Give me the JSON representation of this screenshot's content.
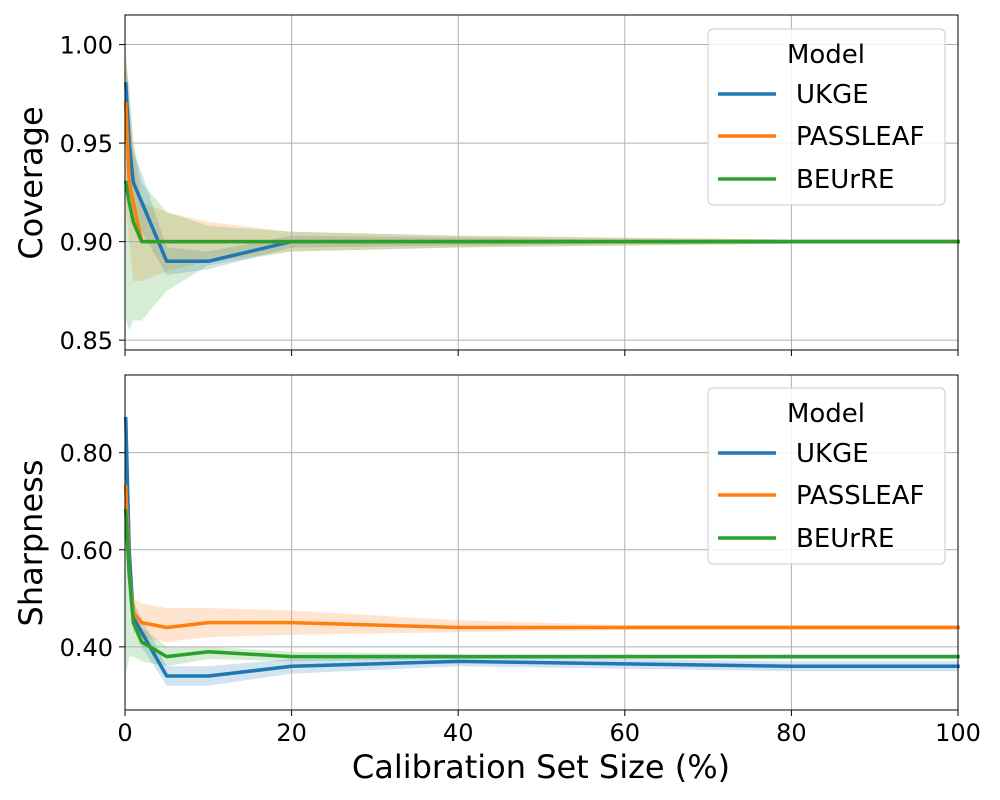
{
  "chart_data": {
    "xlabel": "Calibration Set Size (%)",
    "xlim": [
      0,
      100
    ],
    "xticks": [
      0,
      20,
      40,
      60,
      80,
      100
    ],
    "colors": {
      "UKGE": "#1f77b4",
      "PASSLEAF": "#ff7f0e",
      "BEUrRE": "#2ca02c"
    },
    "panels": [
      {
        "type": "line",
        "id": "coverage",
        "ylabel": "Coverage",
        "ylim": [
          0.845,
          1.015
        ],
        "yticks": [
          "1.00",
          "0.95",
          "0.90",
          "0.85"
        ],
        "legend": {
          "title": "Model",
          "placement": "top-right"
        },
        "series": [
          {
            "name": "UKGE",
            "x": [
              0.1,
              0.5,
              1,
              2,
              5,
              10,
              20,
              40,
              60,
              80,
              100
            ],
            "y": [
              0.98,
              0.95,
              0.93,
              0.92,
              0.89,
              0.89,
              0.9,
              0.9,
              0.9,
              0.9,
              0.9
            ],
            "lower": [
              0.96,
              0.93,
              0.91,
              0.905,
              0.883,
              0.886,
              0.897,
              0.898,
              0.899,
              0.899,
              0.899
            ],
            "upper": [
              0.995,
              0.97,
              0.945,
              0.935,
              0.897,
              0.895,
              0.903,
              0.902,
              0.901,
              0.901,
              0.901
            ]
          },
          {
            "name": "PASSLEAF",
            "x": [
              0.1,
              0.5,
              1,
              2,
              5,
              10,
              20,
              40,
              60,
              80,
              100
            ],
            "y": [
              0.97,
              0.93,
              0.92,
              0.9,
              0.9,
              0.9,
              0.9,
              0.9,
              0.9,
              0.9,
              0.9
            ],
            "lower": [
              0.92,
              0.9,
              0.88,
              0.88,
              0.885,
              0.89,
              0.895,
              0.897,
              0.898,
              0.899,
              0.899
            ],
            "upper": [
              1.0,
              0.97,
              0.95,
              0.92,
              0.915,
              0.91,
              0.905,
              0.903,
              0.902,
              0.901,
              0.901
            ]
          },
          {
            "name": "BEUrRE",
            "x": [
              0.1,
              0.5,
              1,
              2,
              5,
              10,
              20,
              40,
              60,
              80,
              100
            ],
            "y": [
              0.93,
              0.92,
              0.91,
              0.9,
              0.9,
              0.9,
              0.9,
              0.9,
              0.9,
              0.9,
              0.9
            ],
            "lower": [
              0.86,
              0.855,
              0.86,
              0.86,
              0.875,
              0.888,
              0.895,
              0.897,
              0.898,
              0.899,
              0.899
            ],
            "upper": [
              0.99,
              0.98,
              0.95,
              0.93,
              0.915,
              0.908,
              0.905,
              0.903,
              0.902,
              0.901,
              0.901
            ]
          }
        ]
      },
      {
        "type": "line",
        "id": "sharpness",
        "ylabel": "Sharpness",
        "ylim": [
          0.27,
          0.96
        ],
        "yticks": [
          "0.80",
          "0.60",
          "0.40"
        ],
        "legend": {
          "title": "Model",
          "placement": "top-right"
        },
        "series": [
          {
            "name": "UKGE",
            "x": [
              0.1,
              0.5,
              1,
              2,
              5,
              10,
              20,
              40,
              60,
              80,
              100
            ],
            "y": [
              0.87,
              0.6,
              0.46,
              0.43,
              0.34,
              0.34,
              0.36,
              0.37,
              0.365,
              0.36,
              0.36
            ],
            "lower": [
              0.82,
              0.55,
              0.44,
              0.4,
              0.32,
              0.32,
              0.345,
              0.36,
              0.355,
              0.35,
              0.35
            ],
            "upper": [
              0.9,
              0.66,
              0.49,
              0.46,
              0.36,
              0.36,
              0.375,
              0.38,
              0.375,
              0.37,
              0.37
            ]
          },
          {
            "name": "PASSLEAF",
            "x": [
              0.1,
              0.5,
              1,
              2,
              5,
              10,
              20,
              40,
              60,
              80,
              100
            ],
            "y": [
              0.73,
              0.55,
              0.47,
              0.45,
              0.44,
              0.45,
              0.45,
              0.44,
              0.44,
              0.44,
              0.44
            ],
            "lower": [
              0.68,
              0.5,
              0.43,
              0.42,
              0.41,
              0.42,
              0.425,
              0.43,
              0.435,
              0.435,
              0.435
            ],
            "upper": [
              0.77,
              0.6,
              0.5,
              0.49,
              0.48,
              0.48,
              0.475,
              0.455,
              0.445,
              0.445,
              0.445
            ]
          },
          {
            "name": "BEUrRE",
            "x": [
              0.1,
              0.5,
              1,
              2,
              5,
              10,
              20,
              40,
              60,
              80,
              100
            ],
            "y": [
              0.68,
              0.55,
              0.45,
              0.41,
              0.38,
              0.39,
              0.38,
              0.38,
              0.38,
              0.38,
              0.38
            ],
            "lower": [
              0.34,
              0.38,
              0.38,
              0.37,
              0.36,
              0.375,
              0.37,
              0.375,
              0.375,
              0.375,
              0.375
            ],
            "upper": [
              0.72,
              0.6,
              0.5,
              0.44,
              0.4,
              0.4,
              0.39,
              0.385,
              0.385,
              0.385,
              0.385
            ]
          }
        ]
      }
    ]
  }
}
